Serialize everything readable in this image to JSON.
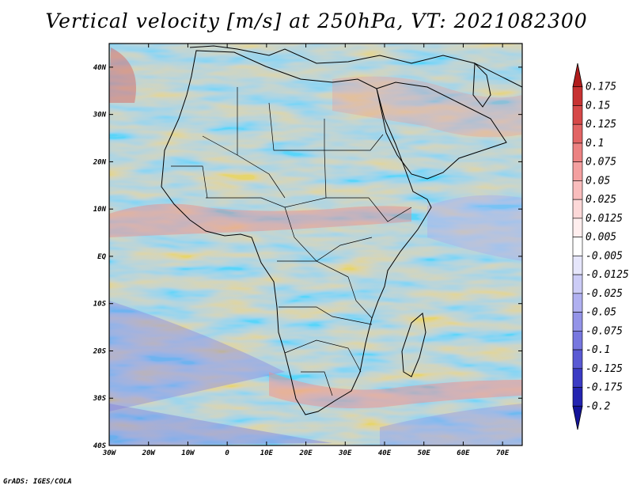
{
  "title": "Vertical velocity [m/s] at 250hPa, VT: 2021082300",
  "credit": "GrADS: IGES/COLA",
  "map": {
    "lon_range": [
      -30,
      75
    ],
    "lat_range": [
      -40,
      45
    ],
    "lon_ticks": [
      {
        "value": -30,
        "label": "30W"
      },
      {
        "value": -20,
        "label": "20W"
      },
      {
        "value": -10,
        "label": "10W"
      },
      {
        "value": 0,
        "label": "0"
      },
      {
        "value": 10,
        "label": "10E"
      },
      {
        "value": 20,
        "label": "20E"
      },
      {
        "value": 30,
        "label": "30E"
      },
      {
        "value": 40,
        "label": "40E"
      },
      {
        "value": 50,
        "label": "50E"
      },
      {
        "value": 60,
        "label": "60E"
      },
      {
        "value": 70,
        "label": "70E"
      }
    ],
    "lat_ticks": [
      {
        "value": 40,
        "label": "40N"
      },
      {
        "value": 30,
        "label": "30N"
      },
      {
        "value": 20,
        "label": "20N"
      },
      {
        "value": 10,
        "label": "10N"
      },
      {
        "value": 0,
        "label": "EQ"
      },
      {
        "value": -10,
        "label": "10S"
      },
      {
        "value": -20,
        "label": "20S"
      },
      {
        "value": -30,
        "label": "30S"
      },
      {
        "value": -40,
        "label": "40S"
      }
    ]
  },
  "colorbar": {
    "levels": [
      "0.175",
      "0.15",
      "0.125",
      "0.1",
      "0.075",
      "0.05",
      "0.025",
      "0.0125",
      "0.005",
      "-0.005",
      "-0.0125",
      "-0.025",
      "-0.05",
      "-0.075",
      "-0.1",
      "-0.125",
      "-0.175",
      "-0.2"
    ],
    "colors": [
      "#b01d1d",
      "#c73232",
      "#d64848",
      "#e26464",
      "#ec8282",
      "#f4a0a0",
      "#f9bdbd",
      "#fcd8d8",
      "#ffeeee",
      "#ffffff",
      "#e6e6fb",
      "#ccccf6",
      "#b0b0f0",
      "#9494e8",
      "#7777df",
      "#5a5ad4",
      "#3b3bc4",
      "#2424b0",
      "#14149a"
    ]
  }
}
